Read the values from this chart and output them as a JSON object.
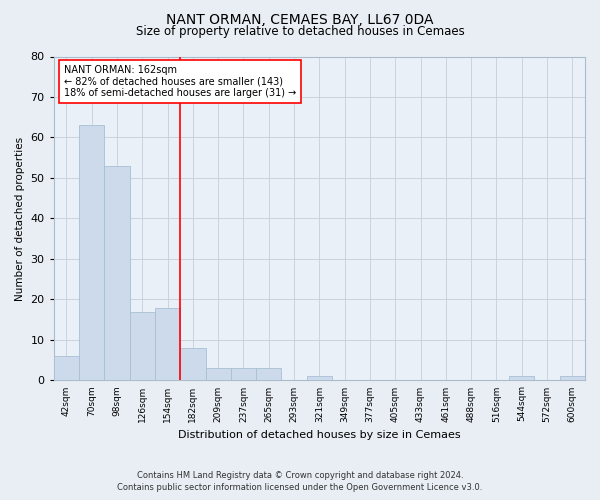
{
  "title": "NANT ORMAN, CEMAES BAY, LL67 0DA",
  "subtitle": "Size of property relative to detached houses in Cemaes",
  "xlabel": "Distribution of detached houses by size in Cemaes",
  "ylabel": "Number of detached properties",
  "bar_color": "#ccdaeb",
  "bar_edgecolor": "#a8bfd4",
  "categories": [
    "42sqm",
    "70sqm",
    "98sqm",
    "126sqm",
    "154sqm",
    "182sqm",
    "209sqm",
    "237sqm",
    "265sqm",
    "293sqm",
    "321sqm",
    "349sqm",
    "377sqm",
    "405sqm",
    "433sqm",
    "461sqm",
    "488sqm",
    "516sqm",
    "544sqm",
    "572sqm",
    "600sqm"
  ],
  "values": [
    6,
    63,
    53,
    17,
    18,
    8,
    3,
    3,
    3,
    0,
    1,
    0,
    0,
    0,
    0,
    0,
    0,
    0,
    1,
    0,
    1
  ],
  "ylim": [
    0,
    80
  ],
  "yticks": [
    0,
    10,
    20,
    30,
    40,
    50,
    60,
    70,
    80
  ],
  "property_label": "NANT ORMAN: 162sqm",
  "annotation_line1": "← 82% of detached houses are smaller (143)",
  "annotation_line2": "18% of semi-detached houses are larger (31) →",
  "vline_bin_index": 4.5,
  "footer_line1": "Contains HM Land Registry data © Crown copyright and database right 2024.",
  "footer_line2": "Contains public sector information licensed under the Open Government Licence v3.0.",
  "background_color": "#e8eef4",
  "plot_bg_color": "#eaf0f8",
  "grid_color": "#c5cfd8"
}
